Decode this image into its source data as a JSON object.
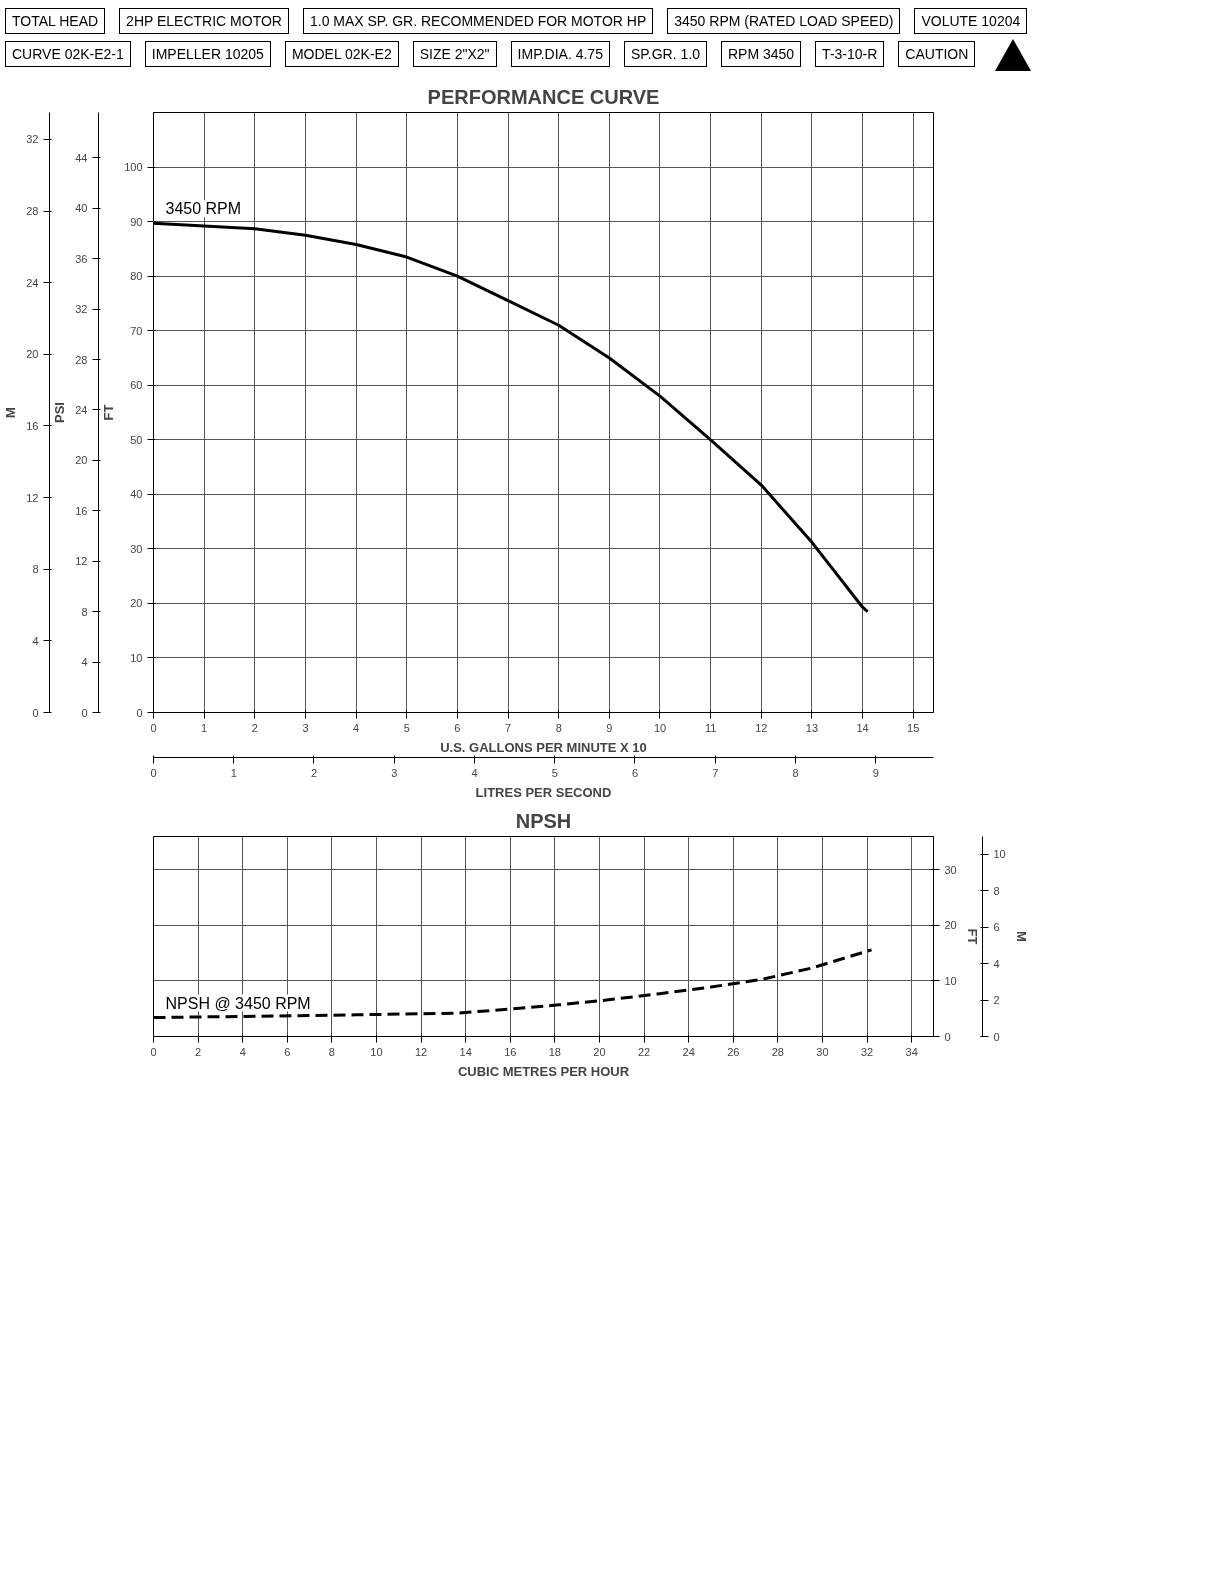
{
  "chart_data": [
    {
      "type": "line",
      "title": "PERFORMANCE CURVE",
      "xlabel": "U.S. GALLONS PER MINUTE X 10",
      "ylabel": "FT",
      "y2label": "M",
      "y3label": "PSI",
      "x2label": "LITRES PER SECOND",
      "xlim": [
        0,
        15.4
      ],
      "xticks": [
        0,
        1,
        2,
        3,
        4,
        5,
        6,
        7,
        8,
        9,
        10,
        11,
        12,
        13,
        14,
        15
      ],
      "ylim": [
        0,
        110
      ],
      "yticks": [
        0,
        10,
        20,
        30,
        40,
        50,
        60,
        70,
        80,
        90,
        100
      ],
      "y2lim": [
        0,
        33.5
      ],
      "y2ticks": [
        0,
        4,
        8,
        12,
        16,
        20,
        24,
        28,
        32
      ],
      "y3lim": [
        0,
        47.6
      ],
      "y3ticks": [
        0,
        4,
        8,
        12,
        16,
        20,
        24,
        28,
        32,
        36,
        40,
        44
      ],
      "x2lim": [
        0,
        9.72
      ],
      "x2ticks": [
        0,
        1,
        2,
        3,
        4,
        5,
        6,
        7,
        8,
        9
      ],
      "grid": true,
      "legend": false,
      "marker": "none",
      "series": [
        {
          "name": "3450 RPM",
          "color": "#000000",
          "line_style": "solid",
          "x": [
            0,
            1,
            2,
            3,
            4,
            5,
            6,
            7,
            8,
            9,
            10,
            11,
            12,
            13,
            14,
            14.1
          ],
          "values": [
            89.7,
            89.2,
            88.7,
            87.5,
            85.8,
            83.5,
            80,
            75.5,
            71,
            65,
            58,
            50,
            41.7,
            31.2,
            19.3,
            18.5
          ]
        }
      ],
      "annotations": [
        "TOTAL HEAD",
        "2HP ELECTRIC MOTOR",
        "1.0 MAX SP. GR. RECOMMENDED FOR MOTOR HP",
        "3450 RPM (RATED LOAD SPEED)",
        "VOLUTE 10204",
        "CURVE 02K-E2-1",
        "IMPELLER 10205",
        "MODEL 02K-E2",
        "SIZE 2\"X2\"",
        "IMP.DIA. 4.75",
        "SP.GR. 1.0",
        "RPM 3450",
        "T-3-10-R",
        "CAUTION"
      ]
    },
    {
      "type": "line",
      "title": "NPSH",
      "xlabel": "CUBIC METRES PER HOUR",
      "ylabel": "FT",
      "y2label": "M",
      "xlim": [
        0,
        34.98
      ],
      "xticks": [
        0,
        2,
        4,
        6,
        8,
        10,
        12,
        14,
        16,
        18,
        20,
        22,
        24,
        26,
        28,
        30,
        32,
        34
      ],
      "ylim": [
        0,
        36
      ],
      "yticks": [
        0,
        10,
        20,
        30
      ],
      "y2lim": [
        0,
        10.97
      ],
      "y2ticks": [
        0,
        2,
        4,
        6,
        8,
        10
      ],
      "grid": true,
      "legend": false,
      "marker": "none",
      "series": [
        {
          "name": "NPSH @ 3450 RPM",
          "color": "#000000",
          "line_style": "dashed",
          "x": [
            0,
            9.1,
            13.6,
            15.9,
            18.2,
            20.4,
            22.7,
            25.0,
            27.3,
            29.5,
            32.2
          ],
          "values": [
            3.4,
            3.9,
            4.2,
            4.9,
            5.7,
            6.6,
            7.7,
            8.9,
            10.3,
            12.3,
            15.6
          ]
        }
      ]
    }
  ]
}
